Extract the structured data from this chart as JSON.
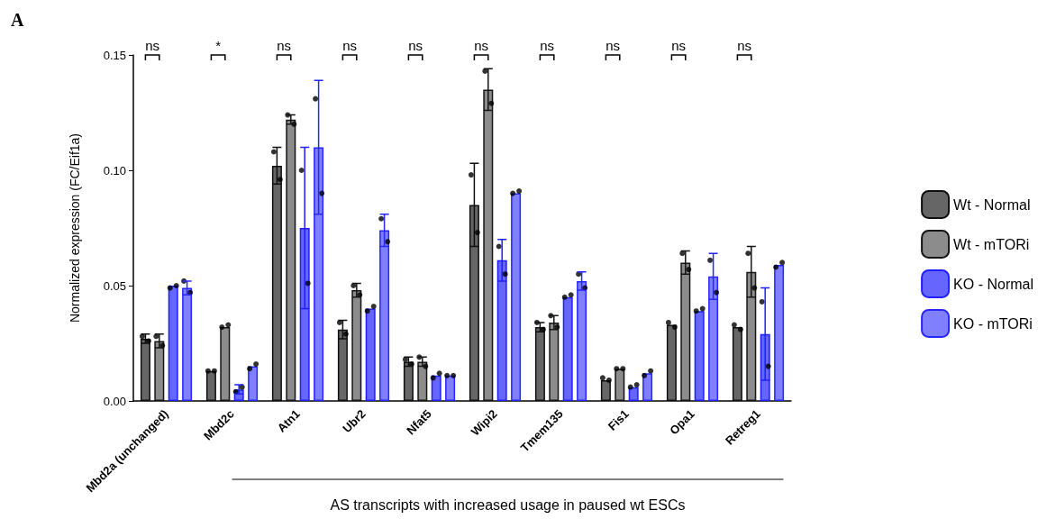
{
  "chart_data": {
    "type": "bar",
    "xlabel": "AS transcripts with increased usage in paused wt ESCs",
    "ylabel": "Normalized expression (FC/Eif1a)",
    "categories": [
      "Mbd2a (unchanged)",
      "Mbd2c",
      "Atn1",
      "Ubr2",
      "Nfat5",
      "Wipi2",
      "Tmem135",
      "Fis1",
      "Opa1",
      "Retreg1"
    ],
    "series": [
      {
        "name": "Wt - Normal",
        "color": "#666666",
        "values": [
          0.027,
          0.013,
          0.102,
          0.031,
          0.017,
          0.085,
          0.032,
          0.009,
          0.033,
          0.032
        ],
        "errors": [
          0.002,
          null,
          0.008,
          0.004,
          0.002,
          0.018,
          0.002,
          null,
          null,
          null
        ]
      },
      {
        "name": "Wt - mTORi",
        "color": "#8c8c8c",
        "values": [
          0.026,
          0.032,
          0.122,
          0.048,
          0.017,
          0.135,
          0.034,
          0.014,
          0.06,
          0.056
        ],
        "errors": [
          0.003,
          null,
          0.002,
          0.003,
          0.002,
          0.009,
          0.003,
          null,
          0.005,
          0.011
        ]
      },
      {
        "name": "KO - Normal",
        "color": "#6666ff",
        "values": [
          0.05,
          0.005,
          0.075,
          0.04,
          0.011,
          0.061,
          0.045,
          0.006,
          0.039,
          0.029
        ],
        "errors": [
          null,
          0.002,
          0.035,
          null,
          null,
          0.009,
          null,
          null,
          null,
          0.02
        ]
      },
      {
        "name": "KO - mTORi",
        "color": "#8080ff",
        "values": [
          0.049,
          0.015,
          0.11,
          0.074,
          0.011,
          0.09,
          0.052,
          0.012,
          0.054,
          0.059
        ],
        "errors": [
          0.003,
          null,
          0.029,
          0.007,
          null,
          null,
          0.004,
          null,
          0.01,
          null
        ]
      },
      {
        "type": "scatter",
        "color": "#000000",
        "x": [
          "Mbd2a (unchanged)",
          "Mbd2a (unchanged)",
          "Mbd2c",
          "Mbd2c",
          "Atn1",
          "Atn1",
          "Ubr2",
          "Ubr2",
          "Nfat5",
          "Nfat5",
          "Wipi2",
          "Wipi2",
          "Tmem135",
          "Tmem135",
          "Fis1",
          "Fis1",
          "Opa1",
          "Opa1",
          "Retreg1",
          "Retreg1"
        ],
        "values": [
          0.028,
          0.026,
          0.013,
          0.013,
          0.108,
          0.096,
          0.034,
          0.029,
          0.018,
          0.016,
          0.098,
          0.073,
          0.034,
          0.031,
          0.01,
          0.009,
          0.034,
          0.032,
          0.033,
          0.031
        ]
      },
      {
        "type": "scatter",
        "color": "#000000",
        "x": [
          "Mbd2a (unchanged)",
          "Mbd2a (unchanged)",
          "Mbd2c",
          "Mbd2c",
          "Atn1",
          "Atn1",
          "Ubr2",
          "Ubr2",
          "Nfat5",
          "Nfat5",
          "Wipi2",
          "Wipi2",
          "Tmem135",
          "Tmem135",
          "Fis1",
          "Fis1",
          "Opa1",
          "Opa1",
          "Retreg1",
          "Retreg1"
        ],
        "values": [
          0.028,
          0.024,
          0.032,
          0.033,
          0.124,
          0.12,
          0.05,
          0.046,
          0.019,
          0.015,
          0.143,
          0.129,
          0.037,
          0.032,
          0.014,
          0.014,
          0.064,
          0.057,
          0.064,
          0.049
        ]
      },
      {
        "type": "scatter",
        "color": "#000000",
        "x": [
          "Mbd2a (unchanged)",
          "Mbd2a (unchanged)",
          "Mbd2c",
          "Mbd2c",
          "Atn1",
          "Atn1",
          "Ubr2",
          "Ubr2",
          "Nfat5",
          "Nfat5",
          "Wipi2",
          "Wipi2",
          "Tmem135",
          "Tmem135",
          "Fis1",
          "Fis1",
          "Opa1",
          "Opa1",
          "Retreg1",
          "Retreg1"
        ],
        "values": [
          0.049,
          0.05,
          0.004,
          0.006,
          0.1,
          0.051,
          0.039,
          0.041,
          0.01,
          0.012,
          0.067,
          0.055,
          0.045,
          0.046,
          0.006,
          0.007,
          0.039,
          0.04,
          0.043,
          0.015
        ]
      },
      {
        "type": "scatter",
        "color": "#000000",
        "x": [
          "Mbd2a (unchanged)",
          "Mbd2a (unchanged)",
          "Mbd2c",
          "Mbd2c",
          "Atn1",
          "Atn1",
          "Ubr2",
          "Ubr2",
          "Nfat5",
          "Nfat5",
          "Wipi2",
          "Wipi2",
          "Tmem135",
          "Tmem135",
          "Fis1",
          "Fis1",
          "Opa1",
          "Opa1",
          "Retreg1",
          "Retreg1"
        ],
        "values": [
          0.052,
          0.047,
          0.014,
          0.016,
          0.131,
          0.09,
          0.079,
          0.069,
          0.011,
          0.011,
          0.09,
          0.091,
          0.055,
          0.049,
          0.011,
          0.013,
          0.061,
          0.047,
          0.058,
          0.06
        ]
      }
    ],
    "marker": "circle",
    "ylim": [
      0,
      0.15
    ],
    "yticks": [
      {
        "value": 0,
        "label": "0.00"
      },
      {
        "value": 0.05,
        "label": "0.05"
      },
      {
        "value": 0.1,
        "label": "0.10"
      },
      {
        "value": 0.15,
        "label": "0.15"
      }
    ],
    "grid": false,
    "legend": "right",
    "annotations": [
      "A",
      "ns",
      "*",
      "ns",
      "ns",
      "ns",
      "ns",
      "ns",
      "ns",
      "ns",
      "ns"
    ]
  }
}
